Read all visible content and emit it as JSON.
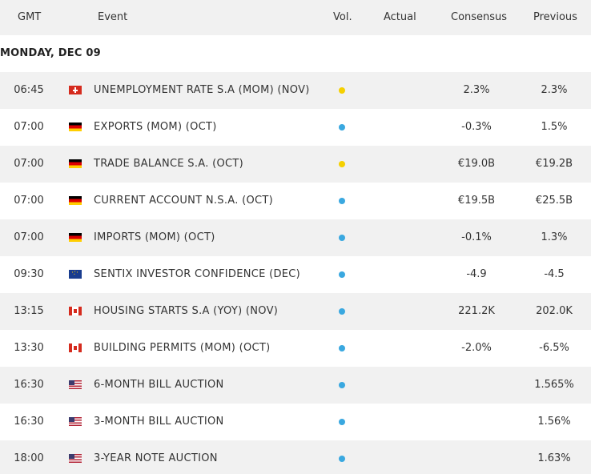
{
  "header": {
    "gmt": "GMT",
    "event": "Event",
    "vol": "Vol.",
    "actual": "Actual",
    "consensus": "Consensus",
    "previous": "Previous"
  },
  "date_label": "MONDAY, DEC 09",
  "colors": {
    "high": "#f5d000",
    "medium": "#3aa8e0"
  },
  "rows": [
    {
      "time": "06:45",
      "flag": "ch",
      "event": "UNEMPLOYMENT RATE S.A (MOM) (NOV)",
      "vol": "high",
      "actual": "",
      "consensus": "2.3%",
      "previous": "2.3%"
    },
    {
      "time": "07:00",
      "flag": "de",
      "event": "EXPORTS (MOM) (OCT)",
      "vol": "medium",
      "actual": "",
      "consensus": "-0.3%",
      "previous": "1.5%"
    },
    {
      "time": "07:00",
      "flag": "de",
      "event": "TRADE BALANCE S.A. (OCT)",
      "vol": "high",
      "actual": "",
      "consensus": "€19.0B",
      "previous": "€19.2B"
    },
    {
      "time": "07:00",
      "flag": "de",
      "event": "CURRENT ACCOUNT N.S.A. (OCT)",
      "vol": "medium",
      "actual": "",
      "consensus": "€19.5B",
      "previous": "€25.5B"
    },
    {
      "time": "07:00",
      "flag": "de",
      "event": "IMPORTS (MOM) (OCT)",
      "vol": "medium",
      "actual": "",
      "consensus": "-0.1%",
      "previous": "1.3%"
    },
    {
      "time": "09:30",
      "flag": "eu",
      "event": "SENTIX INVESTOR CONFIDENCE (DEC)",
      "vol": "medium",
      "actual": "",
      "consensus": "-4.9",
      "previous": "-4.5"
    },
    {
      "time": "13:15",
      "flag": "ca",
      "event": "HOUSING STARTS S.A (YOY) (NOV)",
      "vol": "medium",
      "actual": "",
      "consensus": "221.2K",
      "previous": "202.0K"
    },
    {
      "time": "13:30",
      "flag": "ca",
      "event": "BUILDING PERMITS (MOM) (OCT)",
      "vol": "medium",
      "actual": "",
      "consensus": "-2.0%",
      "previous": "-6.5%"
    },
    {
      "time": "16:30",
      "flag": "us",
      "event": "6-MONTH BILL AUCTION",
      "vol": "medium",
      "actual": "",
      "consensus": "",
      "previous": "1.565%"
    },
    {
      "time": "16:30",
      "flag": "us",
      "event": "3-MONTH BILL AUCTION",
      "vol": "medium",
      "actual": "",
      "consensus": "",
      "previous": "1.56%"
    },
    {
      "time": "18:00",
      "flag": "us",
      "event": "3-YEAR NOTE AUCTION",
      "vol": "medium",
      "actual": "",
      "consensus": "",
      "previous": "1.63%"
    }
  ]
}
